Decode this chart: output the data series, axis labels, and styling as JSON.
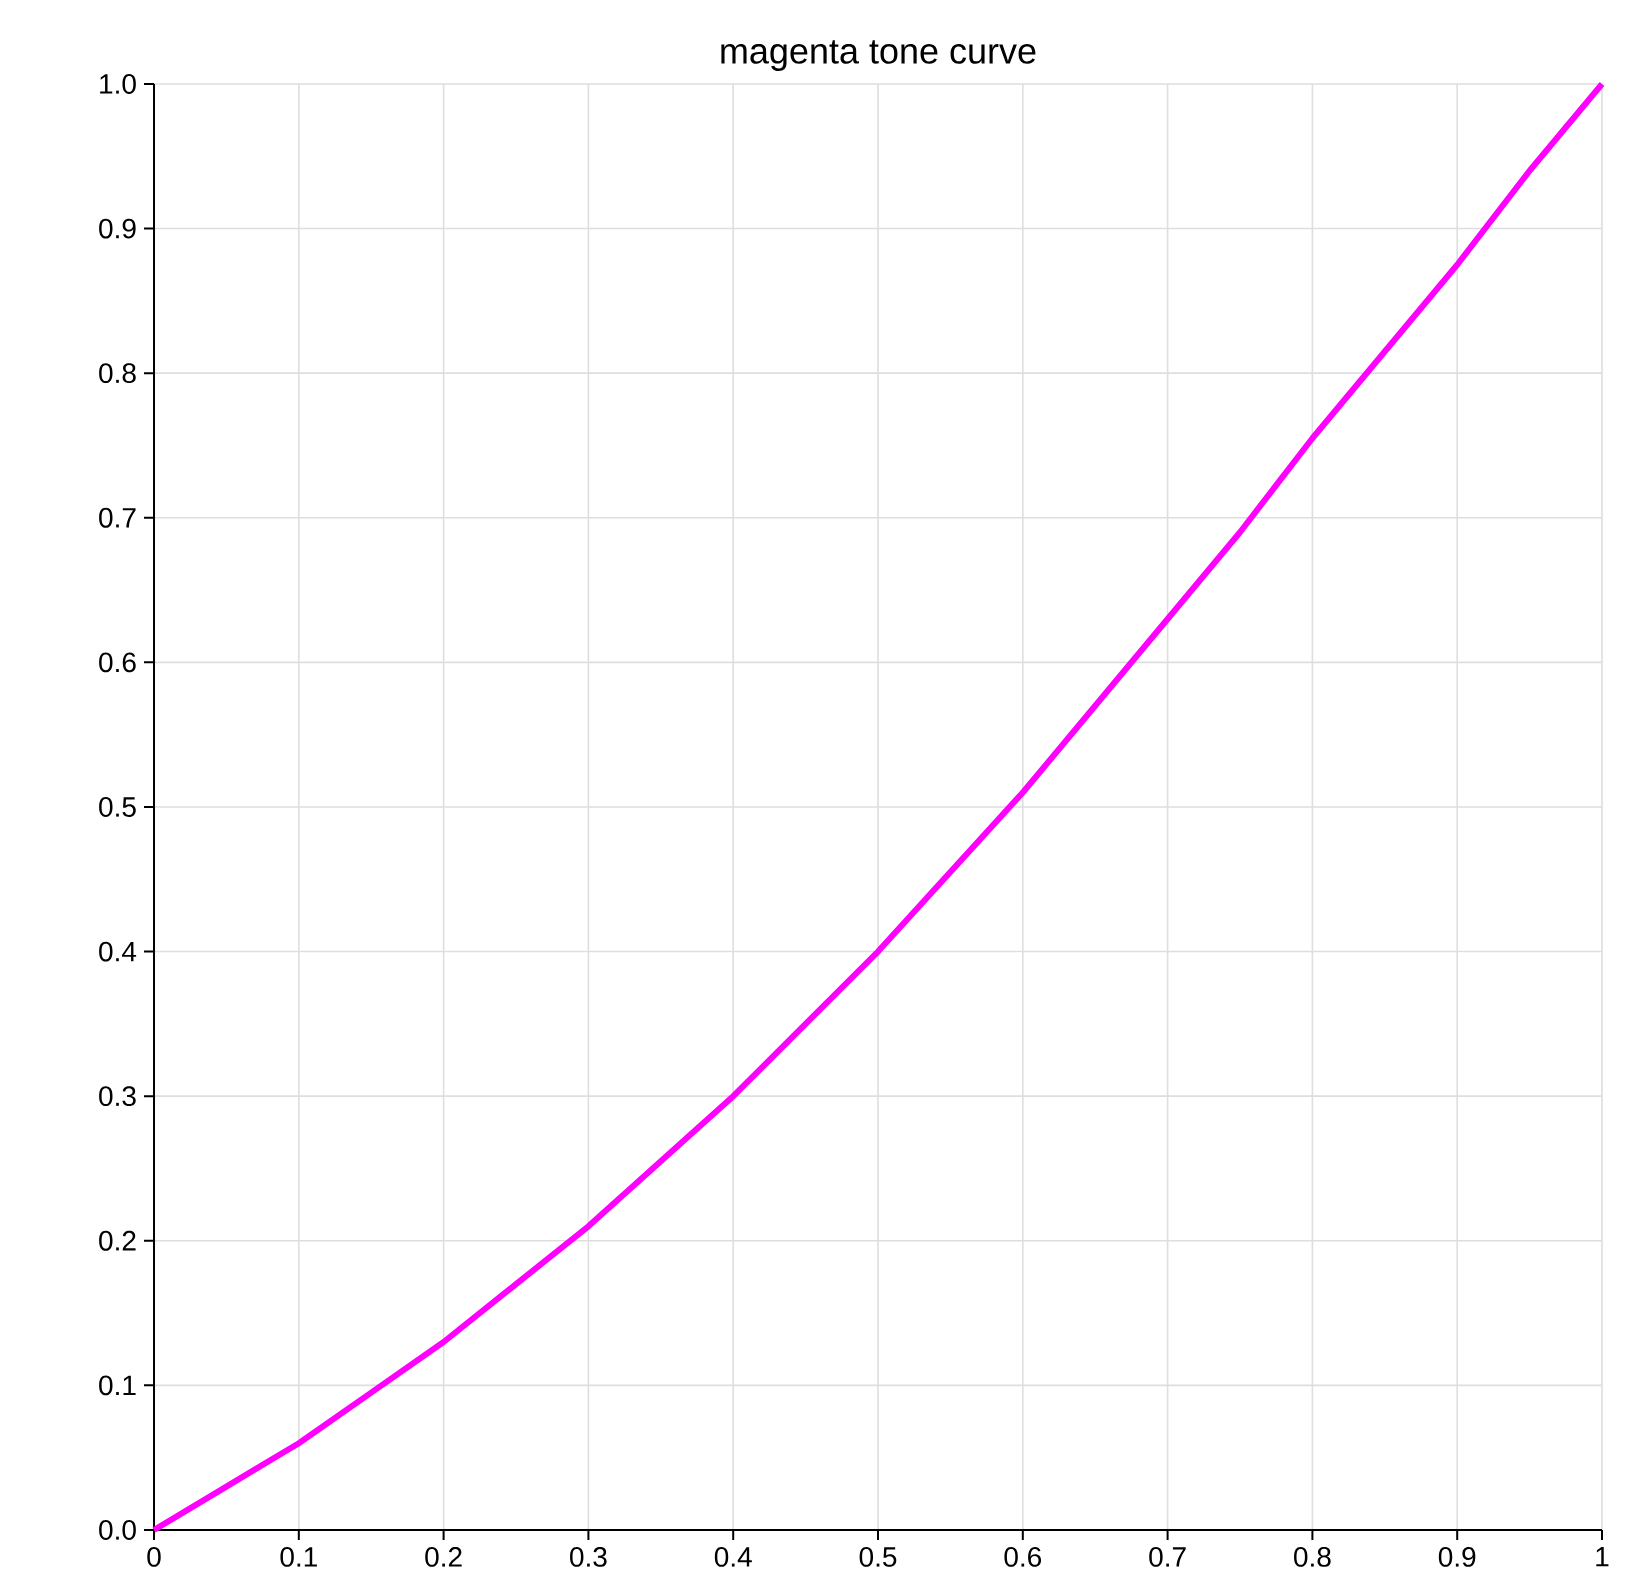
{
  "chart_data": {
    "type": "line",
    "title": "magenta tone curve",
    "x": [
      0,
      0.05,
      0.1,
      0.15,
      0.2,
      0.25,
      0.3,
      0.35,
      0.4,
      0.45,
      0.5,
      0.55,
      0.6,
      0.65,
      0.7,
      0.75,
      0.8,
      0.85,
      0.9,
      0.95,
      1
    ],
    "series": [
      {
        "color": "#ff00ff",
        "values": [
          0,
          0.03,
          0.06,
          0.095,
          0.13,
          0.17,
          0.21,
          0.255,
          0.3,
          0.35,
          0.4,
          0.455,
          0.51,
          0.57,
          0.63,
          0.69,
          0.755,
          0.815,
          0.875,
          0.94,
          1.0
        ]
      }
    ],
    "xlim": [
      0,
      1
    ],
    "ylim": [
      0,
      1
    ],
    "xticks": [
      0,
      0.1,
      0.2,
      0.3,
      0.4,
      0.5,
      0.6,
      0.7,
      0.8,
      0.9,
      1
    ],
    "yticks": [
      {
        "value": 0,
        "label": "0.0"
      },
      0.1,
      0.2,
      0.3,
      0.4,
      0.5,
      0.6,
      0.7,
      0.8,
      0.9,
      {
        "value": 1,
        "label": "1.0"
      }
    ],
    "grid": true
  }
}
